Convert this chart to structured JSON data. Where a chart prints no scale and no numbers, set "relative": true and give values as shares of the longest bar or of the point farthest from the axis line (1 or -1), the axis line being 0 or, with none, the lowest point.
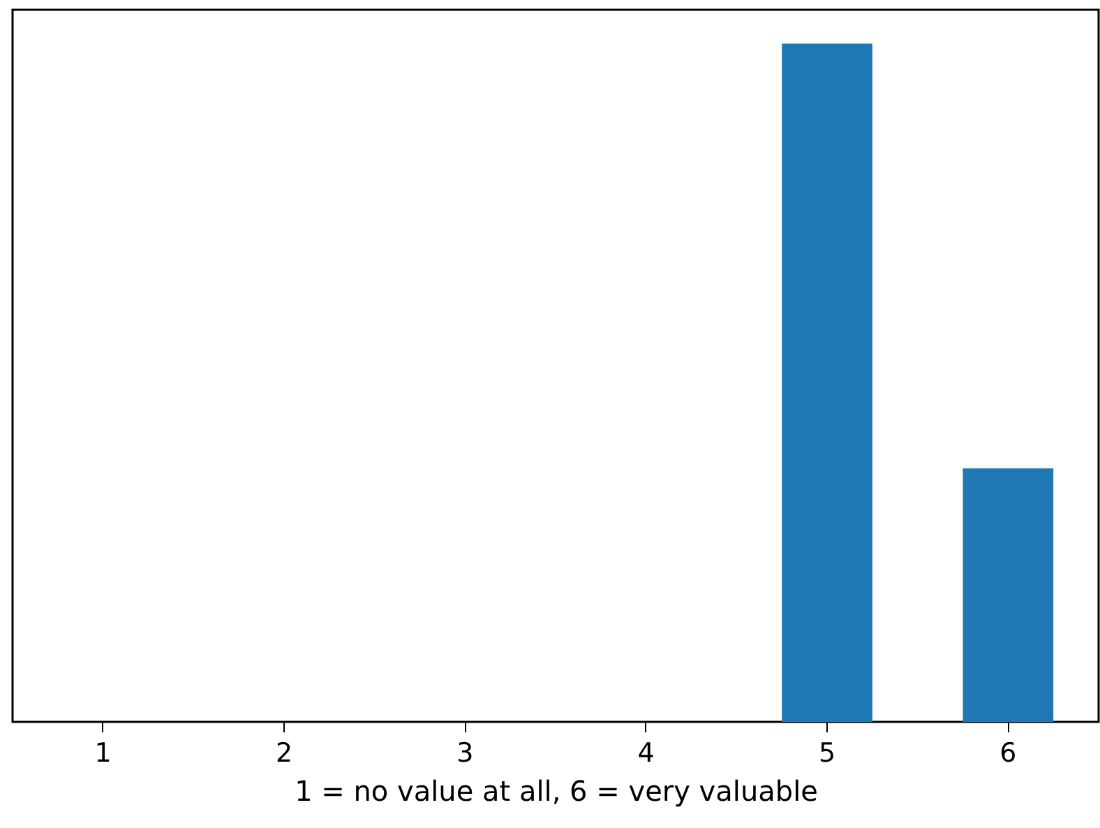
{
  "chart_data": {
    "type": "bar",
    "xlabel": "1 = no value at all, 6 = very valuable",
    "categories": [
      "1",
      "2",
      "3",
      "4",
      "5",
      "6"
    ],
    "relative": true,
    "series": [
      {
        "color": "#1f77b4",
        "values": [
          0,
          0,
          0,
          0,
          1,
          0.374
        ]
      }
    ],
    "grid": false,
    "legend": false
  }
}
